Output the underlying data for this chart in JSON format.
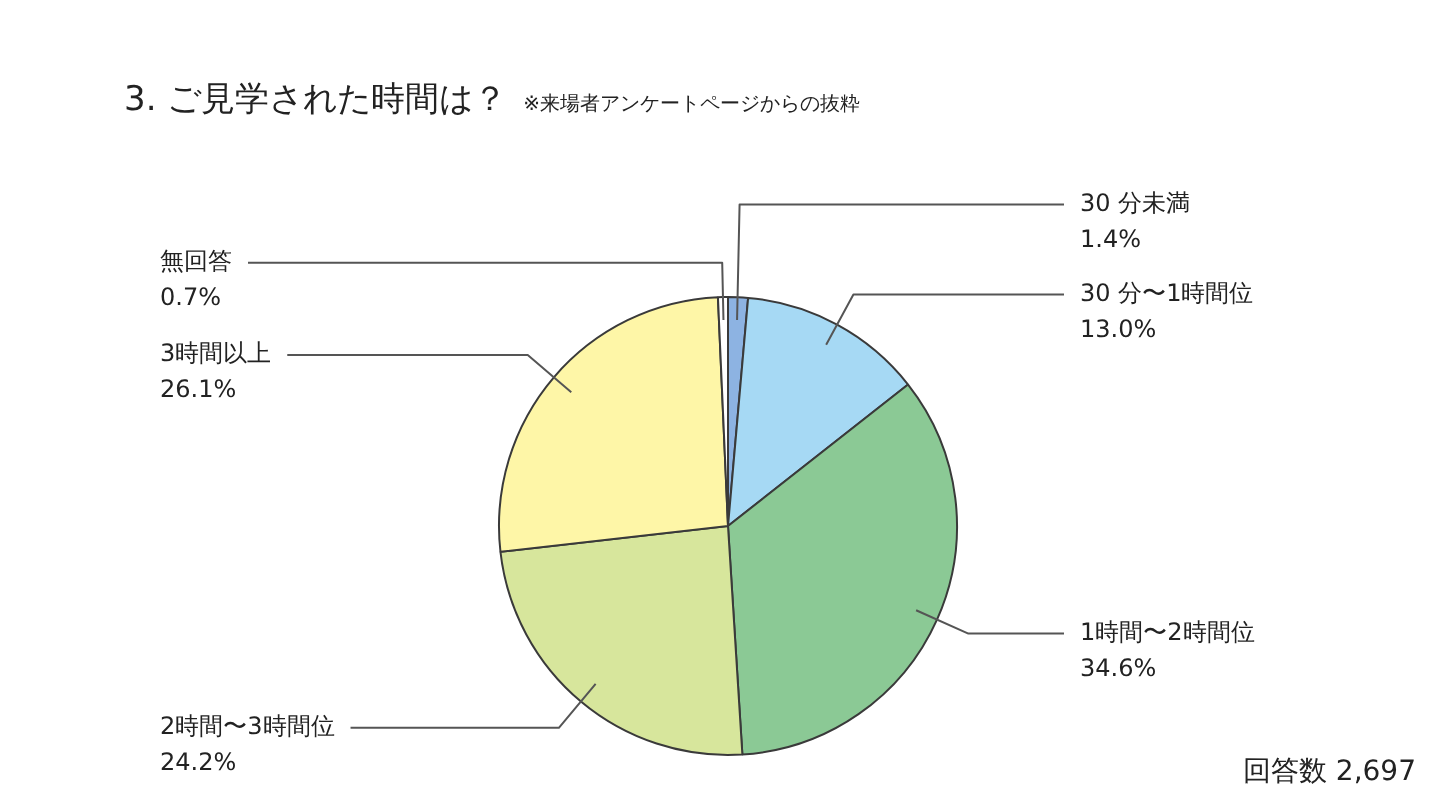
{
  "chart_data": {
    "type": "pie",
    "title": "3. ご見学された時間は？",
    "subtitle": "※来場者アンケートページからの抜粋",
    "categories": [
      "30 分未満",
      "30 分〜1時間位",
      "1時間〜2時間位",
      "2時間〜3時間位",
      "3時間以上",
      "無回答"
    ],
    "values": [
      1.4,
      13.0,
      34.6,
      24.2,
      26.1,
      0.7
    ],
    "value_labels": [
      "1.4%",
      "13.0%",
      "34.6%",
      "24.2%",
      "26.1%",
      "0.7%"
    ],
    "colors": [
      "#8db3e2",
      "#a6d9f4",
      "#8bc995",
      "#d7e69c",
      "#fef6a7",
      "#ffffff"
    ],
    "legend": false,
    "annotations": [
      "回答数 2,697"
    ]
  }
}
